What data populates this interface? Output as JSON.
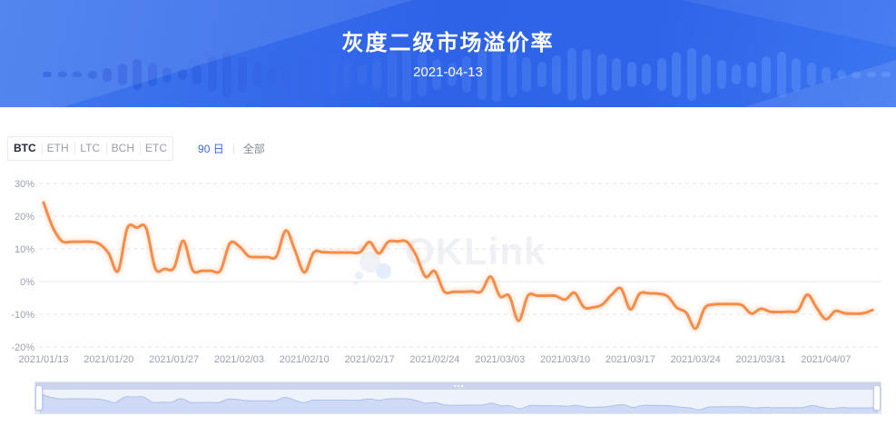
{
  "header": {
    "title": "灰度二级市场溢价率",
    "date": "2021-04-13"
  },
  "controls": {
    "coins": [
      {
        "label": "BTC",
        "selected": true
      },
      {
        "label": "ETH",
        "selected": false
      },
      {
        "label": "LTC",
        "selected": false
      },
      {
        "label": "BCH",
        "selected": false
      },
      {
        "label": "ETC",
        "selected": false
      }
    ],
    "ranges": [
      {
        "label": "90 日",
        "selected": true
      },
      {
        "label": "全部",
        "selected": false
      }
    ]
  },
  "watermark": {
    "text": "OKLink"
  },
  "colors": {
    "banner_blue": "#2e63e8",
    "accent_blue": "#3565f0",
    "line_orange": "#f68c47",
    "grid_gray": "#e0e4ee",
    "axis_text": "#99a0b2",
    "brush_fill": "#cfdbf6",
    "brush_strip": "#ccd5ec"
  },
  "chart_data": {
    "type": "line",
    "title": "灰度二级市场溢价率",
    "series_name": "BTC",
    "unit": "%",
    "smooth": true,
    "grid": true,
    "ylim": [
      -20,
      30
    ],
    "y_tick_values": [
      30,
      20,
      10,
      0,
      -10,
      -20
    ],
    "y_tick_labels": [
      "30%",
      "20%",
      "10%",
      "0%",
      "-10%",
      "-20%"
    ],
    "x_tick_labels": [
      "2021/01/13",
      "2021/01/20",
      "2021/01/27",
      "2021/02/03",
      "2021/02/10",
      "2021/02/17",
      "2021/02/24",
      "2021/03/03",
      "2021/03/10",
      "2021/03/17",
      "2021/03/24",
      "2021/03/31",
      "2021/04/07"
    ],
    "dates": [
      "2021/01/13",
      "2021/01/14",
      "2021/01/15",
      "2021/01/16",
      "2021/01/17",
      "2021/01/18",
      "2021/01/19",
      "2021/01/20",
      "2021/01/21",
      "2021/01/22",
      "2021/01/23",
      "2021/01/24",
      "2021/01/25",
      "2021/01/26",
      "2021/01/27",
      "2021/01/28",
      "2021/01/29",
      "2021/01/30",
      "2021/01/31",
      "2021/02/01",
      "2021/02/02",
      "2021/02/03",
      "2021/02/04",
      "2021/02/05",
      "2021/02/06",
      "2021/02/07",
      "2021/02/08",
      "2021/02/09",
      "2021/02/10",
      "2021/02/11",
      "2021/02/12",
      "2021/02/13",
      "2021/02/14",
      "2021/02/15",
      "2021/02/16",
      "2021/02/17",
      "2021/02/18",
      "2021/02/19",
      "2021/02/20",
      "2021/02/21",
      "2021/02/22",
      "2021/02/23",
      "2021/02/24",
      "2021/02/25",
      "2021/02/26",
      "2021/02/27",
      "2021/02/28",
      "2021/03/01",
      "2021/03/02",
      "2021/03/03",
      "2021/03/04",
      "2021/03/05",
      "2021/03/06",
      "2021/03/07",
      "2021/03/08",
      "2021/03/09",
      "2021/03/10",
      "2021/03/11",
      "2021/03/12",
      "2021/03/13",
      "2021/03/14",
      "2021/03/15",
      "2021/03/16",
      "2021/03/17",
      "2021/03/18",
      "2021/03/19",
      "2021/03/20",
      "2021/03/21",
      "2021/03/22",
      "2021/03/23",
      "2021/03/24",
      "2021/03/25",
      "2021/03/26",
      "2021/03/27",
      "2021/03/28",
      "2021/03/29",
      "2021/03/30",
      "2021/03/31",
      "2021/04/01",
      "2021/04/02",
      "2021/04/03",
      "2021/04/04",
      "2021/04/05",
      "2021/04/06",
      "2021/04/07",
      "2021/04/08",
      "2021/04/09",
      "2021/04/10",
      "2021/04/11",
      "2021/04/12"
    ],
    "values": [
      24.2,
      16.5,
      12.3,
      12.2,
      12.2,
      12.2,
      11.5,
      8.6,
      3.2,
      16.4,
      16.5,
      16.4,
      4.0,
      3.9,
      4.2,
      12.5,
      3.5,
      3.3,
      3.3,
      3.4,
      11.7,
      10.8,
      7.8,
      7.5,
      7.5,
      7.7,
      15.6,
      9.5,
      2.8,
      8.9,
      9.0,
      8.9,
      8.9,
      8.9,
      9.0,
      12.1,
      8.6,
      12.2,
      12.3,
      12.2,
      8.0,
      1.5,
      3.2,
      -3.0,
      -3.1,
      -3.1,
      -3.0,
      -3.0,
      1.5,
      -4.5,
      -4.4,
      -12.0,
      -4.3,
      -4.3,
      -4.3,
      -4.4,
      -5.5,
      -3.4,
      -7.8,
      -7.9,
      -7.0,
      -4.0,
      -2.1,
      -8.5,
      -3.7,
      -3.6,
      -3.7,
      -4.5,
      -8.0,
      -9.5,
      -14.4,
      -8.0,
      -7.0,
      -6.9,
      -6.9,
      -7.2,
      -9.8,
      -8.3,
      -9.2,
      -9.3,
      -9.2,
      -8.8,
      -4.0,
      -8.0,
      -11.5,
      -9.0,
      -9.7,
      -9.8,
      -9.7,
      -8.7
    ]
  }
}
